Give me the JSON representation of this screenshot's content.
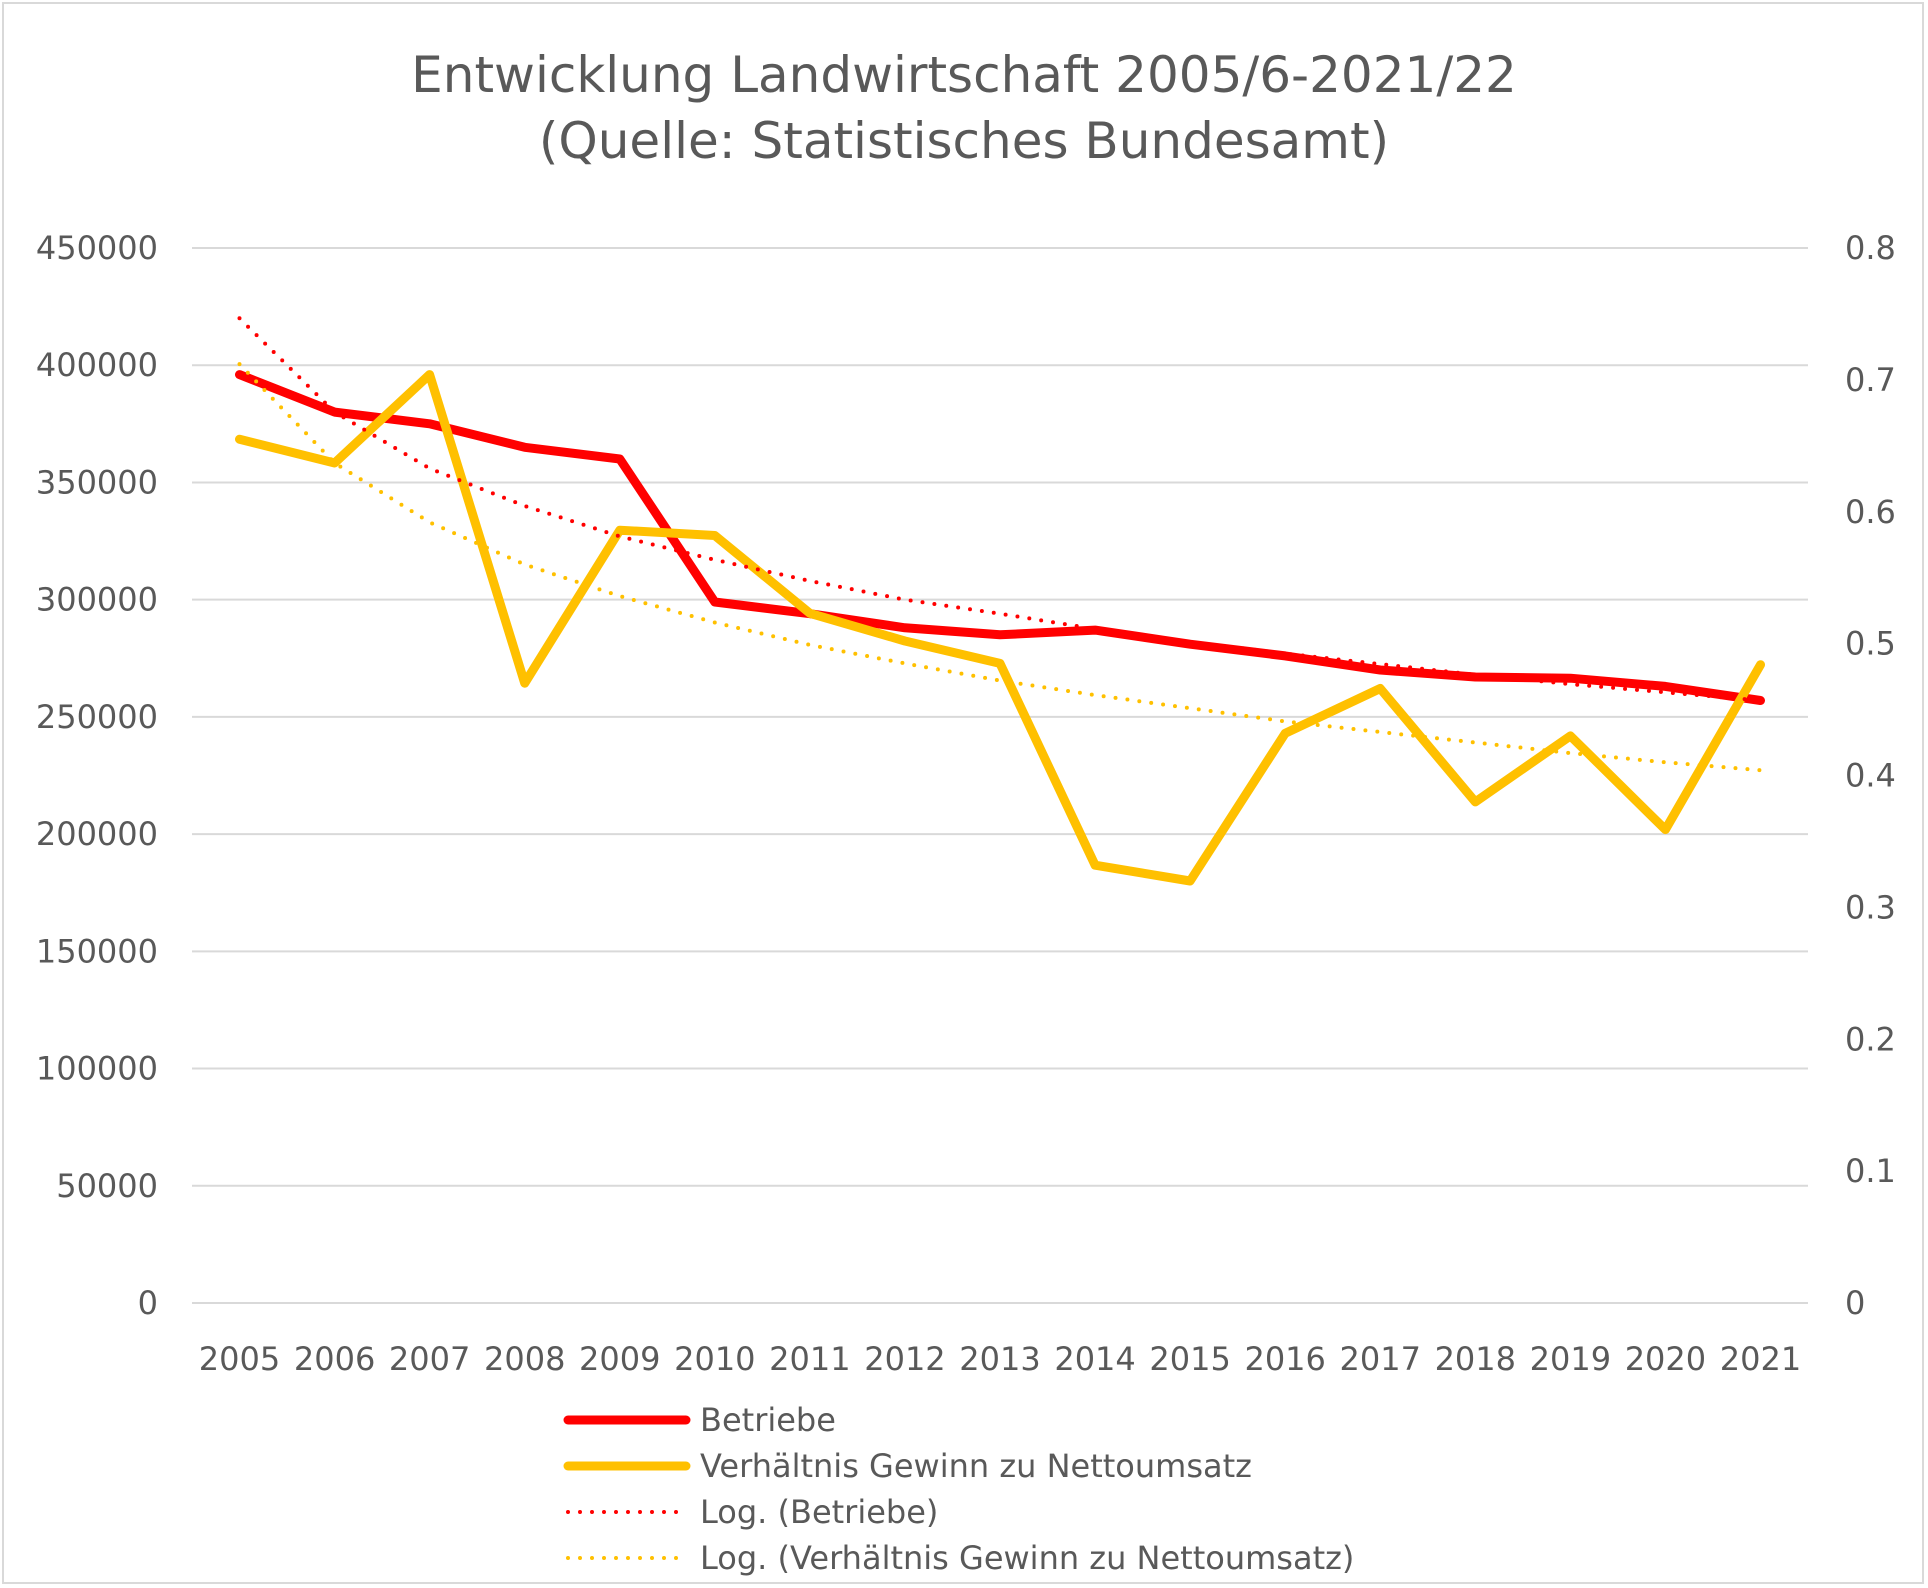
{
  "chart_data": {
    "type": "line",
    "title": "Entwicklung Landwirtschaft 2005/6-2021/22",
    "subtitle": "(Quelle: Statistisches Bundesamt)",
    "x": [
      "2005",
      "2006",
      "2007",
      "2008",
      "2009",
      "2010",
      "2011",
      "2012",
      "2013",
      "2014",
      "2015",
      "2016",
      "2017",
      "2018",
      "2019",
      "2020",
      "2021"
    ],
    "y_left": {
      "ylim": [
        0,
        450000
      ],
      "ticks": [
        "0",
        "50000",
        "100000",
        "150000",
        "200000",
        "250000",
        "300000",
        "350000",
        "400000",
        "450000"
      ]
    },
    "y_right": {
      "ylim": [
        0,
        0.8
      ],
      "ticks": [
        "0",
        "0.1",
        "0.2",
        "0.3",
        "0.4",
        "0.5",
        "0.6",
        "0.7",
        "0.8"
      ]
    },
    "grid": true,
    "legend_position": "bottom",
    "series": [
      {
        "name": "Betriebe",
        "axis": "left",
        "style": "solid",
        "color": "#ff0000",
        "values": [
          396000,
          380000,
          375000,
          365000,
          360000,
          299000,
          294000,
          288000,
          285000,
          287000,
          281000,
          276000,
          270000,
          267000,
          266500,
          263000,
          257000
        ]
      },
      {
        "name": "Verhältnis Gewinn zu Nettoumsatz",
        "axis": "right",
        "style": "solid",
        "color": "#ffc000",
        "values": [
          0.655,
          0.637,
          0.704,
          0.47,
          0.586,
          0.582,
          0.523,
          0.502,
          0.485,
          0.332,
          0.32,
          0.432,
          0.466,
          0.38,
          0.43,
          0.359,
          0.484
        ]
      },
      {
        "name": "Log. (Betriebe)",
        "axis": "left",
        "style": "dotted",
        "color": "#ff0000",
        "values": [
          420000,
          380000,
          356000,
          340000,
          327000,
          317000,
          308000,
          300000,
          294000,
          287500,
          282000,
          277000,
          272500,
          268000,
          264000,
          260500,
          257000
        ]
      },
      {
        "name": "Log. (Verhältnis Gewinn zu Nettoumsatz)",
        "axis": "right",
        "style": "dotted",
        "color": "#ffc000",
        "values": [
          0.712,
          0.637,
          0.592,
          0.56,
          0.536,
          0.516,
          0.499,
          0.485,
          0.472,
          0.461,
          0.451,
          0.441,
          0.433,
          0.425,
          0.417,
          0.41,
          0.404
        ]
      }
    ]
  }
}
